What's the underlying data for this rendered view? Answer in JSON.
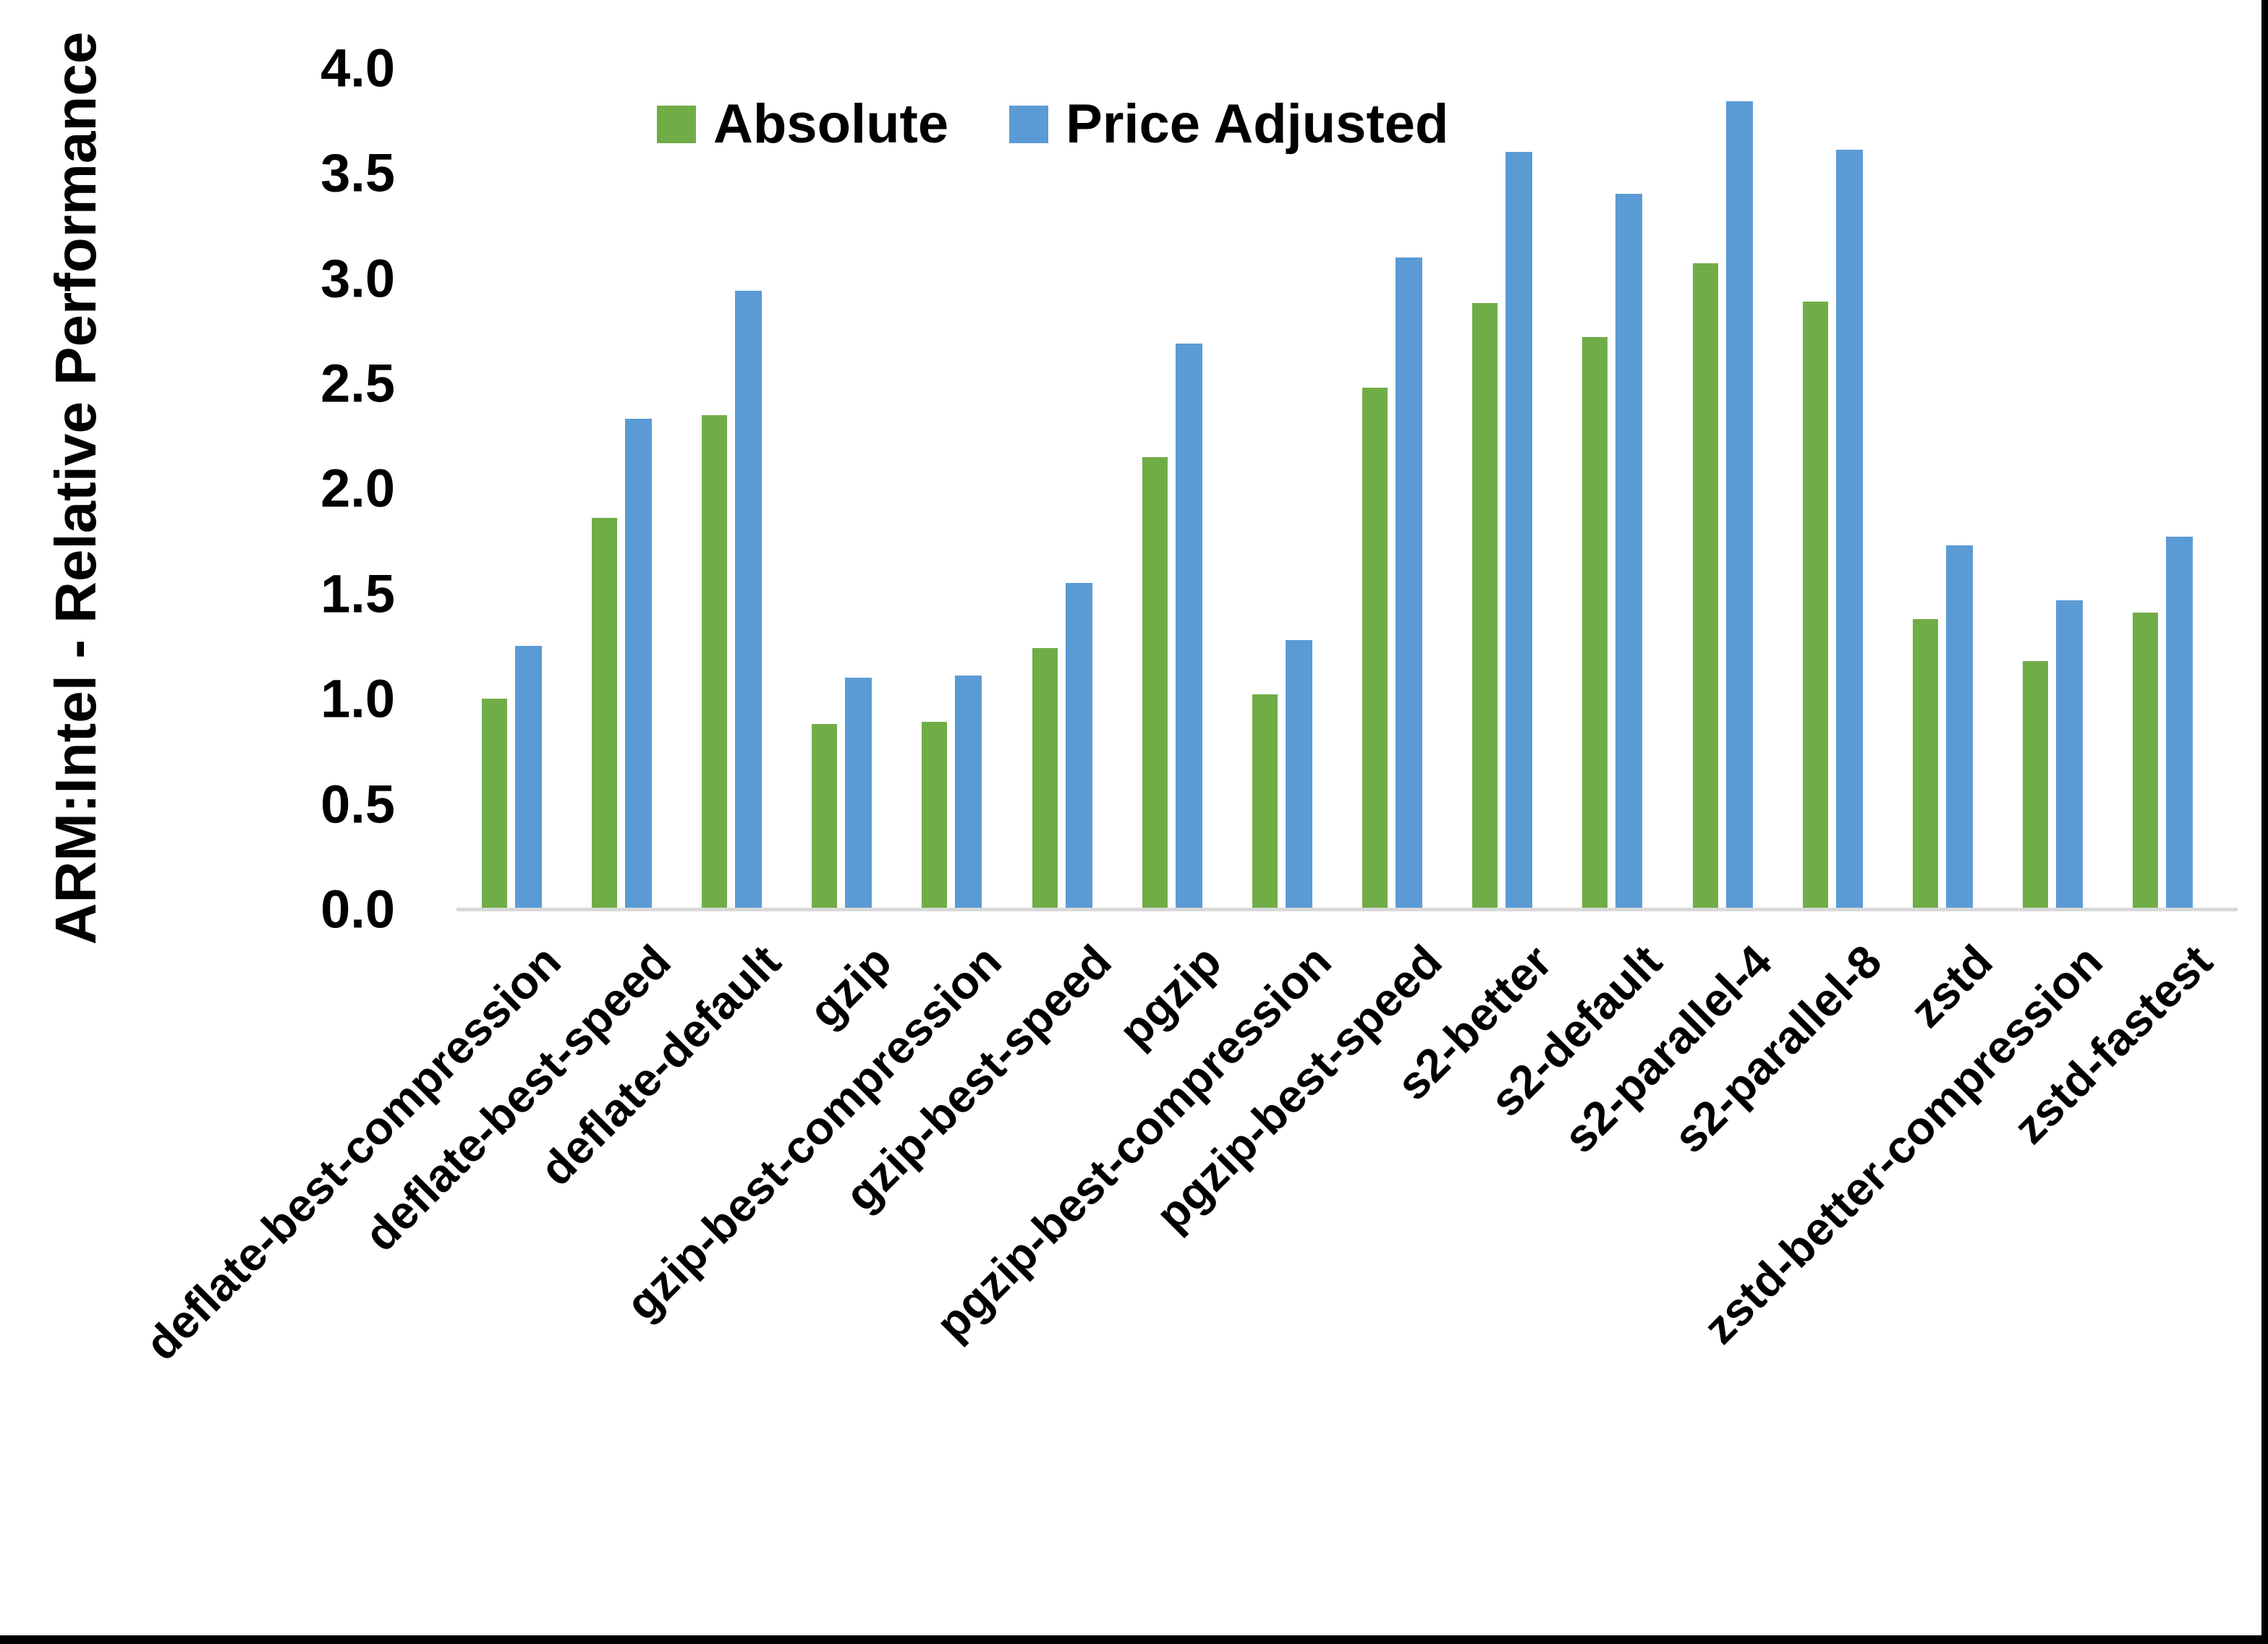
{
  "chart_data": {
    "type": "bar",
    "title": "",
    "ylabel": "ARM:Intel - Relative Performance",
    "xlabel": "",
    "ylim": [
      0.0,
      4.0
    ],
    "ytick_step": 0.5,
    "y_ticks": [
      "0.0",
      "0.5",
      "1.0",
      "1.5",
      "2.0",
      "2.5",
      "3.0",
      "3.5",
      "4.0"
    ],
    "grid": "off",
    "legend_position": "top-center",
    "categories": [
      "deflate-best-compression",
      "deflate-best-speed",
      "deflate-default",
      "gzip",
      "gzip-best-compression",
      "gzip-best-speed",
      "pgzip",
      "pgzip-best-compression",
      "pgzip-best-speed",
      "s2-better",
      "s2-default",
      "s2-parallel-4",
      "s2-parallel-8",
      "zstd",
      "zstd-better-compression",
      "zstd-fastest"
    ],
    "series": [
      {
        "name": "Absolute",
        "color": "#70AD47",
        "values": [
          1.0,
          1.86,
          2.35,
          0.88,
          0.89,
          1.24,
          2.15,
          1.02,
          2.48,
          2.88,
          2.72,
          3.07,
          2.89,
          1.38,
          1.18,
          1.41
        ]
      },
      {
        "name": "Price Adjusted",
        "color": "#5B9BD5",
        "values": [
          1.25,
          2.33,
          2.94,
          1.1,
          1.11,
          1.55,
          2.69,
          1.28,
          3.1,
          3.6,
          3.4,
          3.84,
          3.61,
          1.73,
          1.47,
          1.77
        ]
      }
    ],
    "axis_line_color": "#d9d9d9",
    "text_color": "#000000"
  }
}
